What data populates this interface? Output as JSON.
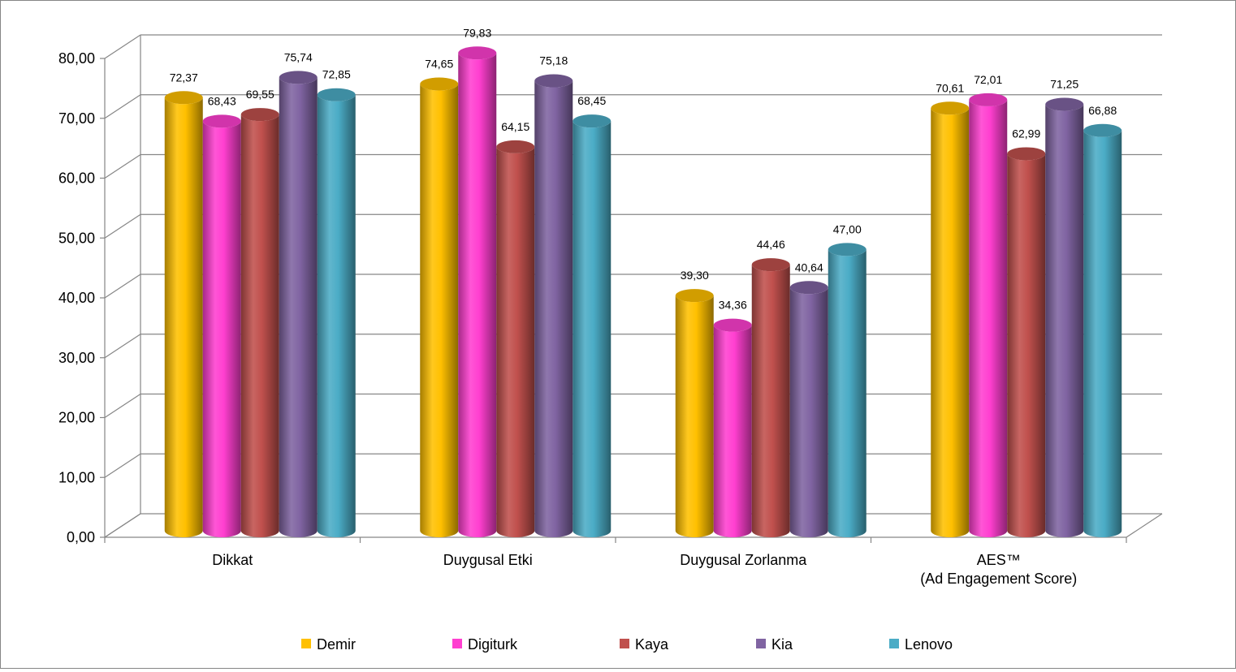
{
  "chart_data": {
    "type": "bar",
    "categories": [
      "Dikkat",
      "Duygusal Etki",
      "Duygusal Zorlanma",
      "AES™\n(Ad Engagement Score)"
    ],
    "series": [
      {
        "name": "Demir",
        "color": "#FFC000",
        "values": [
          72.37,
          74.65,
          39.3,
          70.61
        ]
      },
      {
        "name": "Digiturk",
        "color": "#FF3FD0",
        "values": [
          68.43,
          79.83,
          34.36,
          72.01
        ]
      },
      {
        "name": "Kaya",
        "color": "#C0504D",
        "values": [
          69.55,
          64.15,
          44.46,
          62.99
        ]
      },
      {
        "name": "Kia",
        "color": "#8064A2",
        "values": [
          75.74,
          75.18,
          40.64,
          71.25
        ]
      },
      {
        "name": "Lenovo",
        "color": "#4BACC6",
        "values": [
          72.85,
          68.45,
          47.0,
          66.88
        ]
      }
    ],
    "yticks": [
      "0,00",
      "10,00",
      "20,00",
      "30,00",
      "40,00",
      "50,00",
      "60,00",
      "70,00",
      "80,00"
    ],
    "ylim": [
      0,
      80
    ],
    "grid": true,
    "style": "3d-cylinder",
    "legend_position": "bottom",
    "decimal_separator": ","
  }
}
